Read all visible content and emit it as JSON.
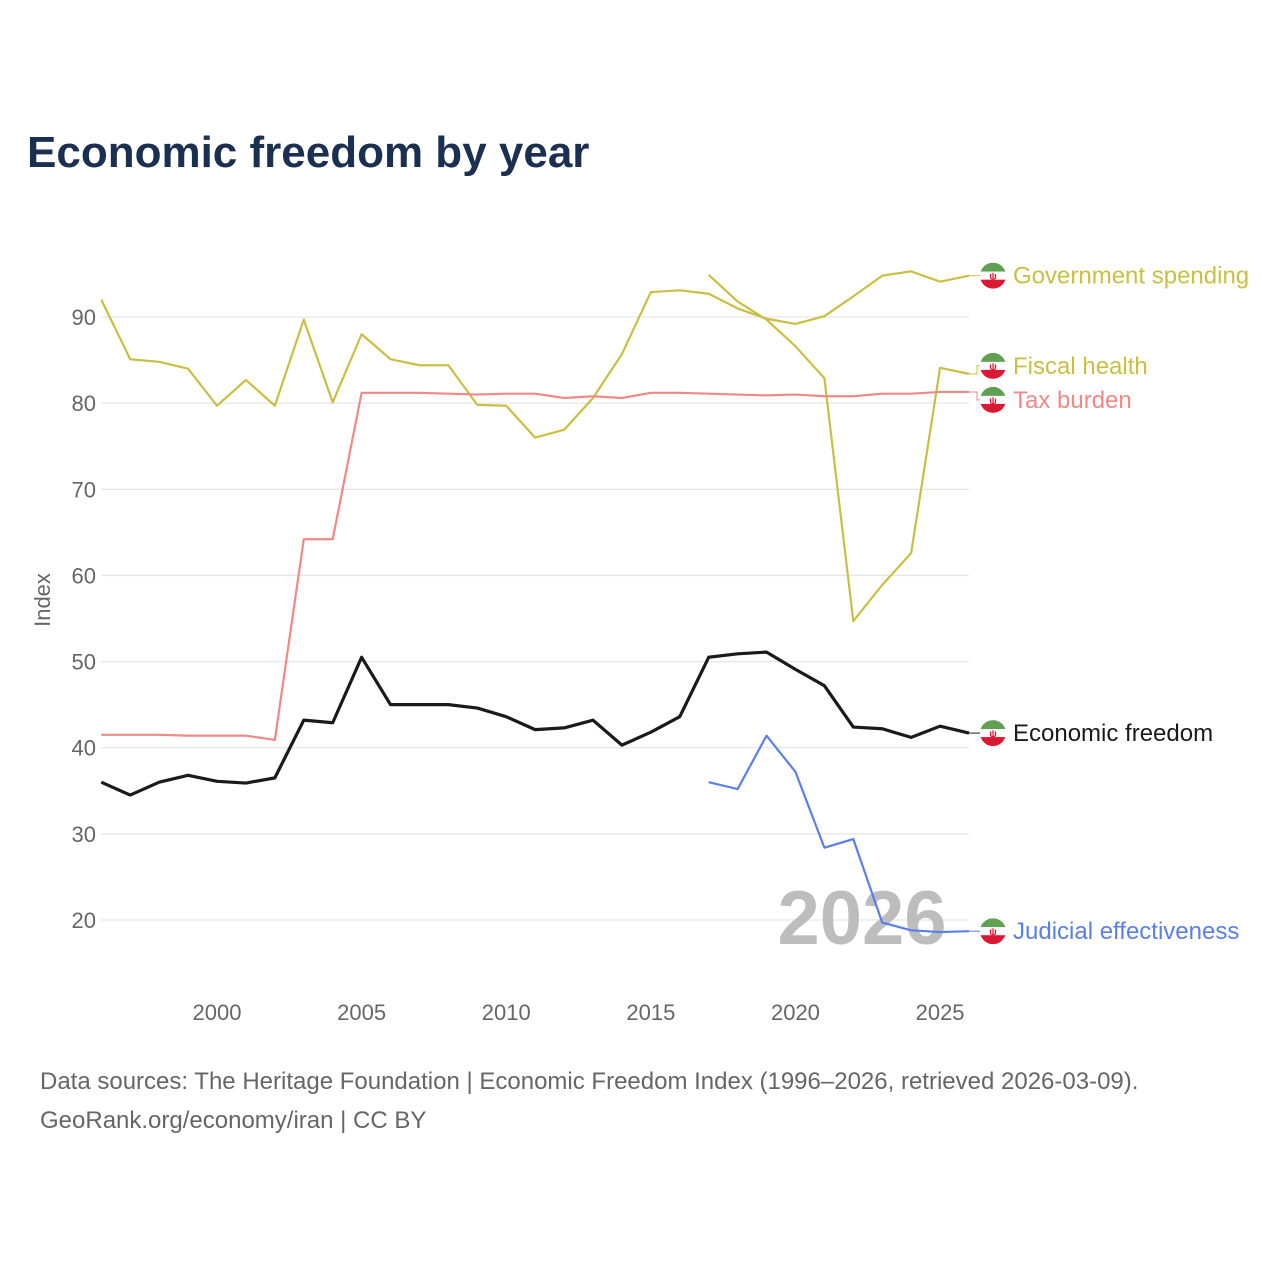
{
  "chart_data": {
    "type": "line",
    "title": "Economic freedom by year",
    "xlabel": "",
    "ylabel": "Index",
    "xlim": [
      1996,
      2026
    ],
    "ylim": [
      12,
      98
    ],
    "xticks": [
      2000,
      2005,
      2010,
      2015,
      2020,
      2025
    ],
    "yticks": [
      20,
      30,
      40,
      50,
      60,
      70,
      80,
      90
    ],
    "grid": true,
    "year_watermark": "2026",
    "legend": "right-end labels",
    "series": [
      {
        "name": "Government spending",
        "color": "#c8bf45",
        "width": 2.2,
        "x": [
          1996,
          1997,
          1998,
          1999,
          2000,
          2001,
          2002,
          2003,
          2004,
          2005,
          2006,
          2007,
          2008,
          2009,
          2010,
          2011,
          2012,
          2013,
          2014,
          2015,
          2016,
          2017,
          2018,
          2019,
          2020,
          2021,
          2022,
          2023,
          2024,
          2025,
          2026
        ],
        "values": [
          92.0,
          85.1,
          84.8,
          84.0,
          79.7,
          82.7,
          79.7,
          89.7,
          80.1,
          88.0,
          85.1,
          84.4,
          84.4,
          79.8,
          79.7,
          76.0,
          76.9,
          80.6,
          85.7,
          92.9,
          93.1,
          92.7,
          91.0,
          89.8,
          89.2,
          90.1,
          92.4,
          94.8,
          95.3,
          94.1,
          94.8
        ]
      },
      {
        "name": "Fiscal health",
        "color": "#c8bf45",
        "width": 2.2,
        "x": [
          2017,
          2018,
          2019,
          2020,
          2021,
          2022,
          2023,
          2024,
          2025,
          2026
        ],
        "values": [
          94.9,
          91.8,
          89.7,
          86.6,
          82.9,
          54.7,
          58.9,
          62.6,
          84.1,
          83.4
        ]
      },
      {
        "name": "Tax burden",
        "color": "#ee8a86",
        "width": 2.2,
        "x": [
          1996,
          1997,
          1998,
          1999,
          2000,
          2001,
          2002,
          2003,
          2004,
          2005,
          2006,
          2007,
          2008,
          2009,
          2010,
          2011,
          2012,
          2013,
          2014,
          2015,
          2016,
          2017,
          2018,
          2019,
          2020,
          2021,
          2022,
          2023,
          2024,
          2025,
          2026
        ],
        "values": [
          41.5,
          41.5,
          41.5,
          41.4,
          41.4,
          41.4,
          40.9,
          64.2,
          64.2,
          81.2,
          81.2,
          81.2,
          81.1,
          81.0,
          81.1,
          81.1,
          80.6,
          80.8,
          80.6,
          81.2,
          81.2,
          81.1,
          81.0,
          80.9,
          81.0,
          80.8,
          80.8,
          81.1,
          81.1,
          81.3,
          81.3
        ]
      },
      {
        "name": "Economic freedom",
        "color": "#1a1a1a",
        "width": 3.2,
        "x": [
          1996,
          1997,
          1998,
          1999,
          2000,
          2001,
          2002,
          2003,
          2004,
          2005,
          2006,
          2007,
          2008,
          2009,
          2010,
          2011,
          2012,
          2013,
          2014,
          2015,
          2016,
          2017,
          2018,
          2019,
          2020,
          2021,
          2022,
          2023,
          2024,
          2025,
          2026
        ],
        "values": [
          36.0,
          34.5,
          36.0,
          36.8,
          36.1,
          35.9,
          36.5,
          43.2,
          42.9,
          50.5,
          45.0,
          45.0,
          45.0,
          44.6,
          43.6,
          42.1,
          42.3,
          43.2,
          40.3,
          41.8,
          43.6,
          50.5,
          50.9,
          51.1,
          49.1,
          47.2,
          42.4,
          42.2,
          41.2,
          42.5,
          41.7
        ]
      },
      {
        "name": "Judicial effectiveness",
        "color": "#5b7fe8",
        "width": 2.2,
        "x": [
          2017,
          2018,
          2019,
          2020,
          2021,
          2022,
          2023,
          2024,
          2025,
          2026
        ],
        "values": [
          36.0,
          35.2,
          41.4,
          37.2,
          28.4,
          29.4,
          19.7,
          18.8,
          18.6,
          18.7
        ]
      }
    ]
  },
  "footer": {
    "line1": "Data sources: The Heritage Foundation | Economic Freedom Index (1996–2026, retrieved 2026-03-09).",
    "line2": "GeoRank.org/economy/iran | CC BY"
  },
  "flag_icon": "iran-flag-icon"
}
